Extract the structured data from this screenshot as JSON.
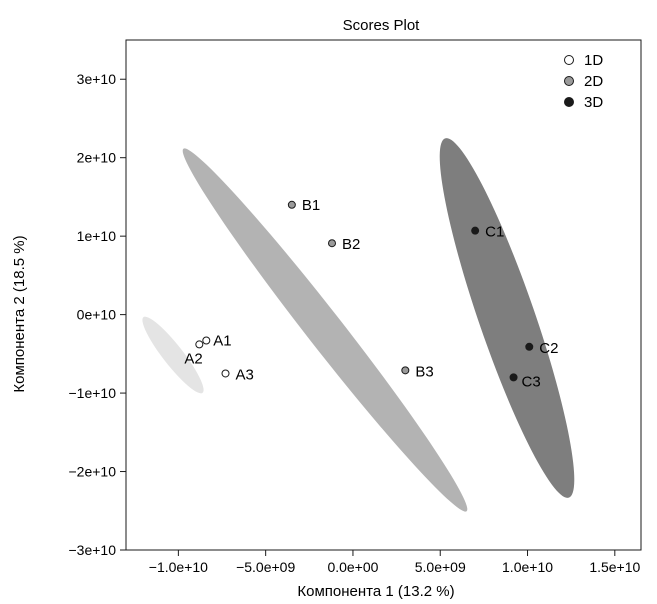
{
  "chart_data": {
    "type": "scatter",
    "title": "Scores Plot",
    "xlabel": "Компонента 1 (13.2 %)",
    "ylabel": "Компонента 2 (18.5 %)",
    "xlim": [
      -13000000000.0,
      16500000000.0
    ],
    "ylim": [
      -30000000000.0,
      35000000000.0
    ],
    "x_ticks": [
      {
        "value": -10000000000.0,
        "label": "−1.0e+10"
      },
      {
        "value": -5000000000.0,
        "label": "−5.0e+09"
      },
      {
        "value": 0,
        "label": "0.0e+00"
      },
      {
        "value": 5000000000.0,
        "label": "5.0e+09"
      },
      {
        "value": 10000000000.0,
        "label": "1.0e+10"
      },
      {
        "value": 15000000000.0,
        "label": "1.5e+10"
      }
    ],
    "y_ticks": [
      {
        "value": -30000000000.0,
        "label": "−3e+10"
      },
      {
        "value": -20000000000.0,
        "label": "−2e+10"
      },
      {
        "value": -10000000000.0,
        "label": "−1e+10"
      },
      {
        "value": 0,
        "label": "0e+10"
      },
      {
        "value": 10000000000.0,
        "label": "1e+10"
      },
      {
        "value": 20000000000.0,
        "label": "2e+10"
      },
      {
        "value": 30000000000.0,
        "label": "3e+10"
      }
    ],
    "grid": false,
    "legend_position": "top-right",
    "series": [
      {
        "name": "1D",
        "marker_fill": "#ffffff",
        "ellipse_color": "#e4e4e4",
        "points": [
          {
            "label": "A1",
            "x": -8400000000.0,
            "y": -3300000000.0
          },
          {
            "label": "A2",
            "x": -8800000000.0,
            "y": -3800000000.0
          },
          {
            "label": "A3",
            "x": -7300000000.0,
            "y": -7500000000.0
          }
        ]
      },
      {
        "name": "2D",
        "marker_fill": "#9a9a9a",
        "ellipse_color": "#b3b3b3",
        "points": [
          {
            "label": "B1",
            "x": -3500000000.0,
            "y": 14000000000.0
          },
          {
            "label": "B2",
            "x": -1200000000.0,
            "y": 9100000000.0
          },
          {
            "label": "B3",
            "x": 3000000000.0,
            "y": -7100000000.0
          }
        ]
      },
      {
        "name": "3D",
        "marker_fill": "#1a1a1a",
        "ellipse_color": "#7e7e7e",
        "points": [
          {
            "label": "C1",
            "x": 7000000000.0,
            "y": 10700000000.0
          },
          {
            "label": "C2",
            "x": 10100000000.0,
            "y": -4100000000.0
          },
          {
            "label": "C3",
            "x": 9200000000.0,
            "y": -8000000000.0
          }
        ]
      }
    ]
  }
}
